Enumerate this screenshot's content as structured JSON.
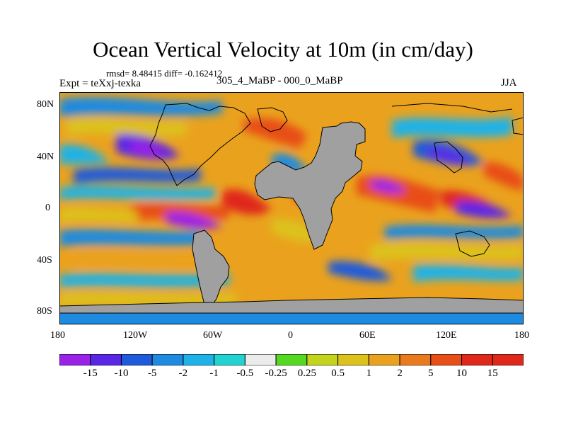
{
  "title": "Ocean Vertical Velocity at 10m (in cm/day)",
  "stats": "rmsd= 8.48415 diff= -0.162412",
  "expt": "Expt = teXxj-texka",
  "difference_label": "305_4_MaBP - 000_0_MaBP",
  "season": "JJA",
  "lat_ticks": [
    "80N",
    "40N",
    "0",
    "40S",
    "80S"
  ],
  "lon_ticks": [
    "180",
    "120W",
    "60W",
    "0",
    "60E",
    "120E",
    "180"
  ],
  "colorbar": {
    "labels": [
      "-15",
      "-10",
      "-5",
      "-2",
      "-1",
      "-0.5",
      "-0.25",
      "0.25",
      "0.5",
      "1",
      "2",
      "5",
      "10",
      "15"
    ],
    "colors": [
      "#9b20e8",
      "#5a26e6",
      "#1f5adc",
      "#1e8ae0",
      "#1eb2e8",
      "#22d2d0",
      "#ebebeb",
      "#55d822",
      "#c4d41c",
      "#dcc21c",
      "#eaa21e",
      "#ea7a1e",
      "#e84e18",
      "#e0281a"
    ]
  },
  "map_colors": {
    "land": "#a0a0a0",
    "coast": "#000000"
  }
}
